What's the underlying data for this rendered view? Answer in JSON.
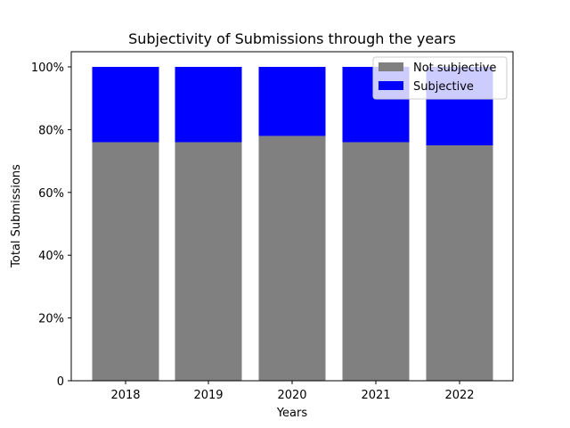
{
  "chart_data": {
    "type": "bar",
    "stacked": true,
    "title": "Subjectivity of Submissions through the years",
    "xlabel": "Years",
    "ylabel": "Total Submissions",
    "categories": [
      "2018",
      "2019",
      "2020",
      "2021",
      "2022"
    ],
    "series": [
      {
        "name": "Not subjective",
        "color": "#808080",
        "values": [
          76,
          76,
          78,
          76,
          75
        ]
      },
      {
        "name": "Subjective",
        "color": "#0000ff",
        "values": [
          24,
          24,
          22,
          24,
          25
        ]
      }
    ],
    "ylim": [
      0,
      100
    ],
    "yticks": [
      0,
      20,
      40,
      60,
      80,
      100
    ],
    "ytick_labels": [
      "0",
      "20%",
      "40%",
      "60%",
      "80%",
      "100%"
    ],
    "grid": false,
    "legend_position": "top-right"
  }
}
